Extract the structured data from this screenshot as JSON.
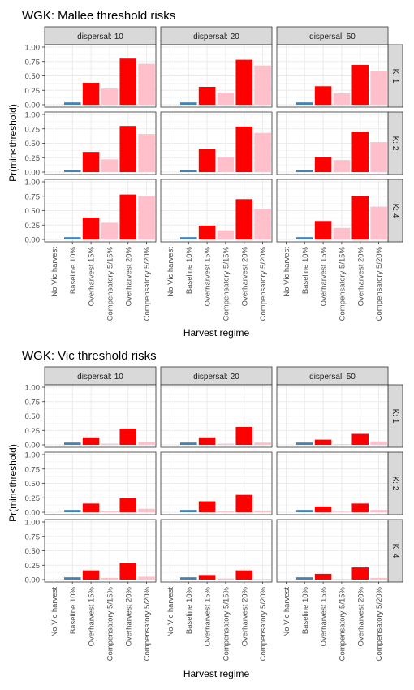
{
  "chart_data": [
    {
      "type": "bar",
      "title": "WGK: Mallee threshold risks",
      "xlabel": "Harvest regime",
      "ylabel": "Pr(min<threshold)",
      "ylim": [
        0,
        1.0
      ],
      "yticks": [
        "0.00",
        "0.25",
        "0.50",
        "0.75",
        "1.00"
      ],
      "categories": [
        "No Vic harvest",
        "Baseline 10%",
        "Overharvest 15%",
        "Compensatory 5/15%",
        "Overharvest 20%",
        "Compensatory 5/20%"
      ],
      "facet_cols": [
        "dispersal: 10",
        "dispersal: 20",
        "dispersal: 50"
      ],
      "facet_rows": [
        "K: 1",
        "K: 2",
        "K: 4"
      ],
      "grid": true,
      "legend": "none",
      "panels": [
        [
          [
            0,
            0.04,
            0.38,
            0.28,
            0.8,
            0.71
          ],
          [
            0,
            0.04,
            0.31,
            0.21,
            0.78,
            0.68
          ],
          [
            0,
            0.04,
            0.32,
            0.2,
            0.69,
            0.58
          ]
        ],
        [
          [
            0,
            0.04,
            0.35,
            0.22,
            0.8,
            0.66
          ],
          [
            0,
            0.04,
            0.4,
            0.26,
            0.79,
            0.68
          ],
          [
            0,
            0.04,
            0.26,
            0.21,
            0.7,
            0.52
          ]
        ],
        [
          [
            0,
            0.04,
            0.38,
            0.29,
            0.78,
            0.75
          ],
          [
            0,
            0.04,
            0.24,
            0.16,
            0.7,
            0.53
          ],
          [
            0,
            0.04,
            0.32,
            0.2,
            0.76,
            0.57
          ]
        ]
      ]
    },
    {
      "type": "bar",
      "title": "WGK: Vic threshold risks",
      "xlabel": "Harvest regime",
      "ylabel": "Pr(min<threshold)",
      "ylim": [
        0,
        1.0
      ],
      "yticks": [
        "0.00",
        "0.25",
        "0.50",
        "0.75",
        "1.00"
      ],
      "categories": [
        "No Vic harvest",
        "Baseline 10%",
        "Overharvest 15%",
        "Compensatory 5/15%",
        "Overharvest 20%",
        "Compensatory 5/20%"
      ],
      "facet_cols": [
        "dispersal: 10",
        "dispersal: 20",
        "dispersal: 50"
      ],
      "facet_rows": [
        "K: 1",
        "K: 2",
        "K: 4"
      ],
      "grid": true,
      "legend": "none",
      "panels": [
        [
          [
            0,
            0.04,
            0.13,
            0.02,
            0.28,
            0.05
          ],
          [
            0,
            0.04,
            0.13,
            0.02,
            0.31,
            0.04
          ],
          [
            0,
            0.04,
            0.09,
            0.01,
            0.19,
            0.06
          ]
        ],
        [
          [
            0,
            0.04,
            0.15,
            0.02,
            0.24,
            0.06
          ],
          [
            0,
            0.04,
            0.19,
            0.02,
            0.3,
            0.03
          ],
          [
            0,
            0.04,
            0.1,
            0.01,
            0.15,
            0.04
          ]
        ],
        [
          [
            0,
            0.04,
            0.16,
            0.03,
            0.29,
            0.05
          ],
          [
            0,
            0.04,
            0.08,
            0.02,
            0.16,
            0.01
          ],
          [
            0,
            0.04,
            0.1,
            0.01,
            0.21,
            0.03
          ]
        ]
      ]
    }
  ],
  "bar_colors": [
    "#4682b4",
    "#4682b4",
    "#ff0000",
    "#ffc0cb",
    "#ff0000",
    "#ffc0cb"
  ],
  "strip_fill": "#d9d9d9",
  "grid_color": "#ebebeb"
}
